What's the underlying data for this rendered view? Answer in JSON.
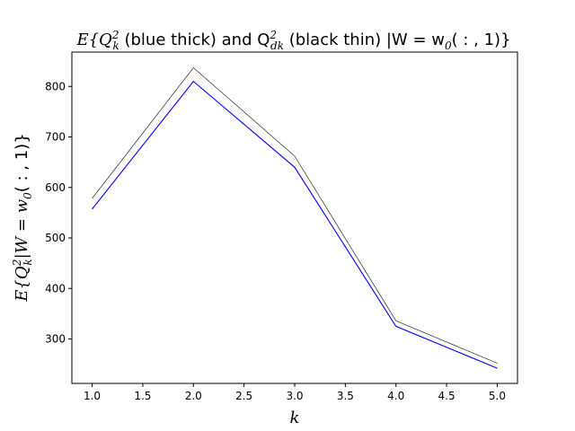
{
  "chart_data": {
    "type": "line",
    "title": {
      "prefix": "E{Q",
      "q1_sub": "k",
      "q1_sup": "2",
      "middle": " (blue thick) and Q",
      "q2_sub": "dk",
      "q2_sup": "2",
      "suffix": " (black thin) |W = w",
      "w_sub": "0",
      "end": "( : , 1)}"
    },
    "xlabel": "k",
    "ylabel": {
      "prefix": "E{Q",
      "sub": "k",
      "sup": "2",
      "suffix": "|W = w",
      "w_sub": "0",
      "end": "( : , 1)}"
    },
    "xlim": [
      0.8,
      5.2
    ],
    "ylim": [
      212,
      868
    ],
    "xticks": [
      1.0,
      1.5,
      2.0,
      2.5,
      3.0,
      3.5,
      4.0,
      4.5,
      5.0
    ],
    "xtick_labels": [
      "1.0",
      "1.5",
      "2.0",
      "2.5",
      "3.0",
      "3.5",
      "4.0",
      "4.5",
      "5.0"
    ],
    "yticks": [
      300,
      400,
      500,
      600,
      700,
      800
    ],
    "ytick_labels": [
      "300",
      "400",
      "500",
      "600",
      "700",
      "800"
    ],
    "grid": false,
    "series": [
      {
        "color": "#0000ff",
        "style": "thick",
        "x": [
          1,
          2,
          3,
          4,
          5
        ],
        "y": [
          557,
          810,
          640,
          325,
          242
        ]
      },
      {
        "color": "#000000",
        "style": "thin",
        "x": [
          1,
          2,
          3,
          4,
          5
        ],
        "y": [
          578,
          837,
          662,
          336,
          252
        ]
      }
    ]
  }
}
